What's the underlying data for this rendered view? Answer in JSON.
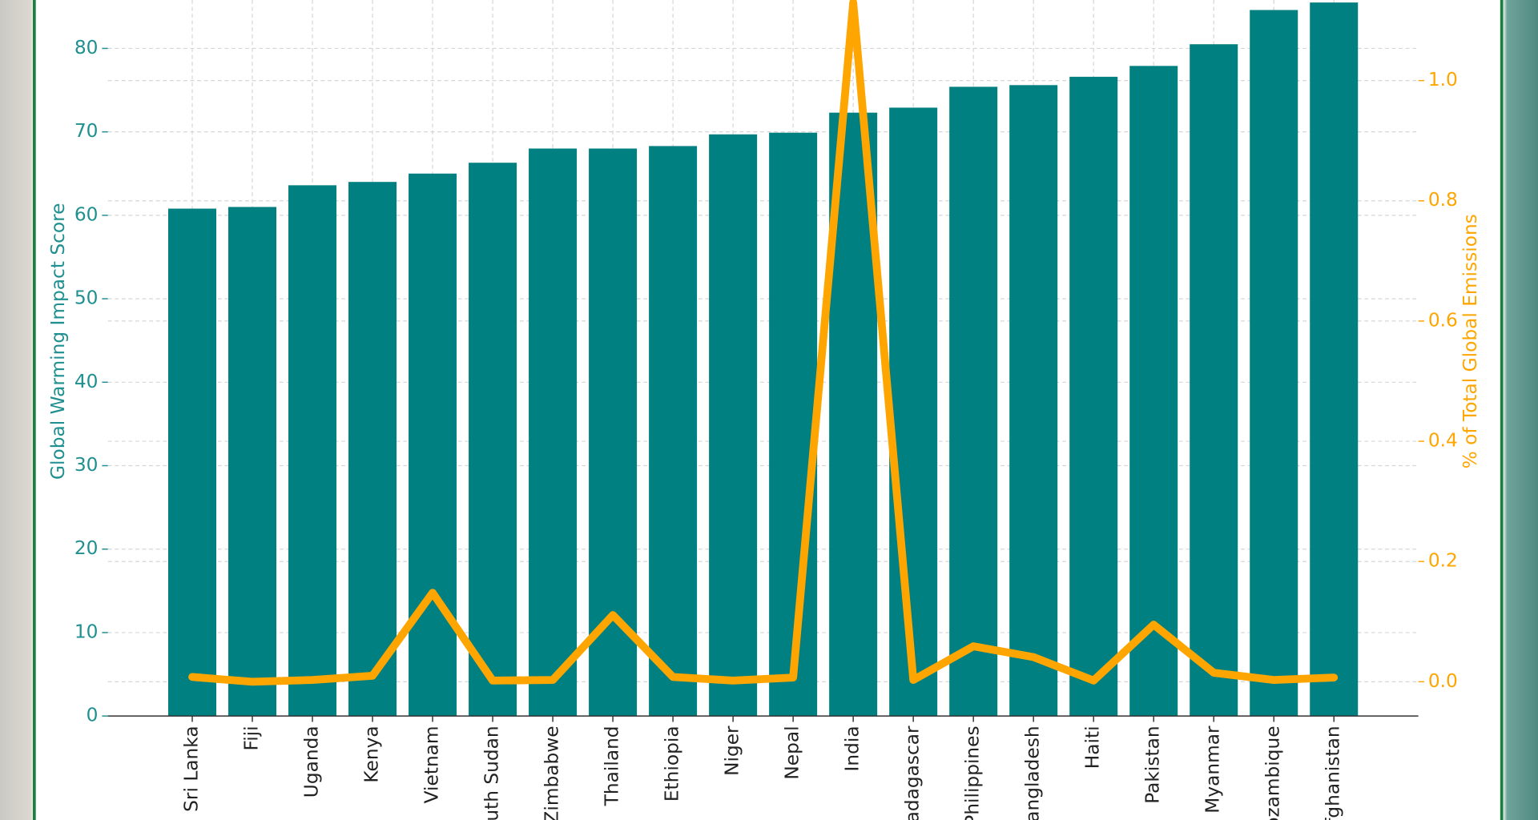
{
  "chart_data": {
    "type": "bar",
    "ylabel": "Global Warming Impact Score",
    "y2label": "% of Total Global Emissions",
    "categories": [
      "Sri Lanka",
      "Fiji",
      "Uganda",
      "Kenya",
      "Vietnam",
      "South Sudan",
      "Zimbabwe",
      "Thailand",
      "Ethiopia",
      "Niger",
      "Nepal",
      "India",
      "Madagascar",
      "Philippines",
      "Bangladesh",
      "Haiti",
      "Pakistan",
      "Myanmar",
      "Mozambique",
      "Afghanistan"
    ],
    "series": [
      {
        "type": "bar",
        "color": "#008080",
        "values": [
          60.8,
          61,
          63.6,
          64,
          65,
          66.3,
          68,
          68,
          68.3,
          69.7,
          69.9,
          72.3,
          72.9,
          75.4,
          75.6,
          76.6,
          77.9,
          80.5,
          84.6,
          85.5
        ]
      },
      {
        "type": "line",
        "axis": "y2",
        "color": "#ffa500",
        "values": [
          0.008,
          0.0,
          0.003,
          0.01,
          0.148,
          0.002,
          0.003,
          0.111,
          0.008,
          0.002,
          0.007,
          1.13,
          0.003,
          0.059,
          0.041,
          0.002,
          0.095,
          0.015,
          0.003,
          0.007
        ]
      }
    ],
    "ylim": [
      0,
      85.8
    ],
    "yticks": [
      0,
      10,
      20,
      30,
      40,
      50,
      60,
      70,
      80
    ],
    "y2lim": [
      -0.057,
      1.134
    ],
    "y2ticks": [
      {
        "value": 0,
        "label": "0.0"
      },
      0.2,
      0.4,
      0.6,
      0.8,
      {
        "value": 1,
        "label": "1.0"
      }
    ],
    "ycolor": "#1f8f8f",
    "y2color": "#ffa500",
    "grid": true
  }
}
